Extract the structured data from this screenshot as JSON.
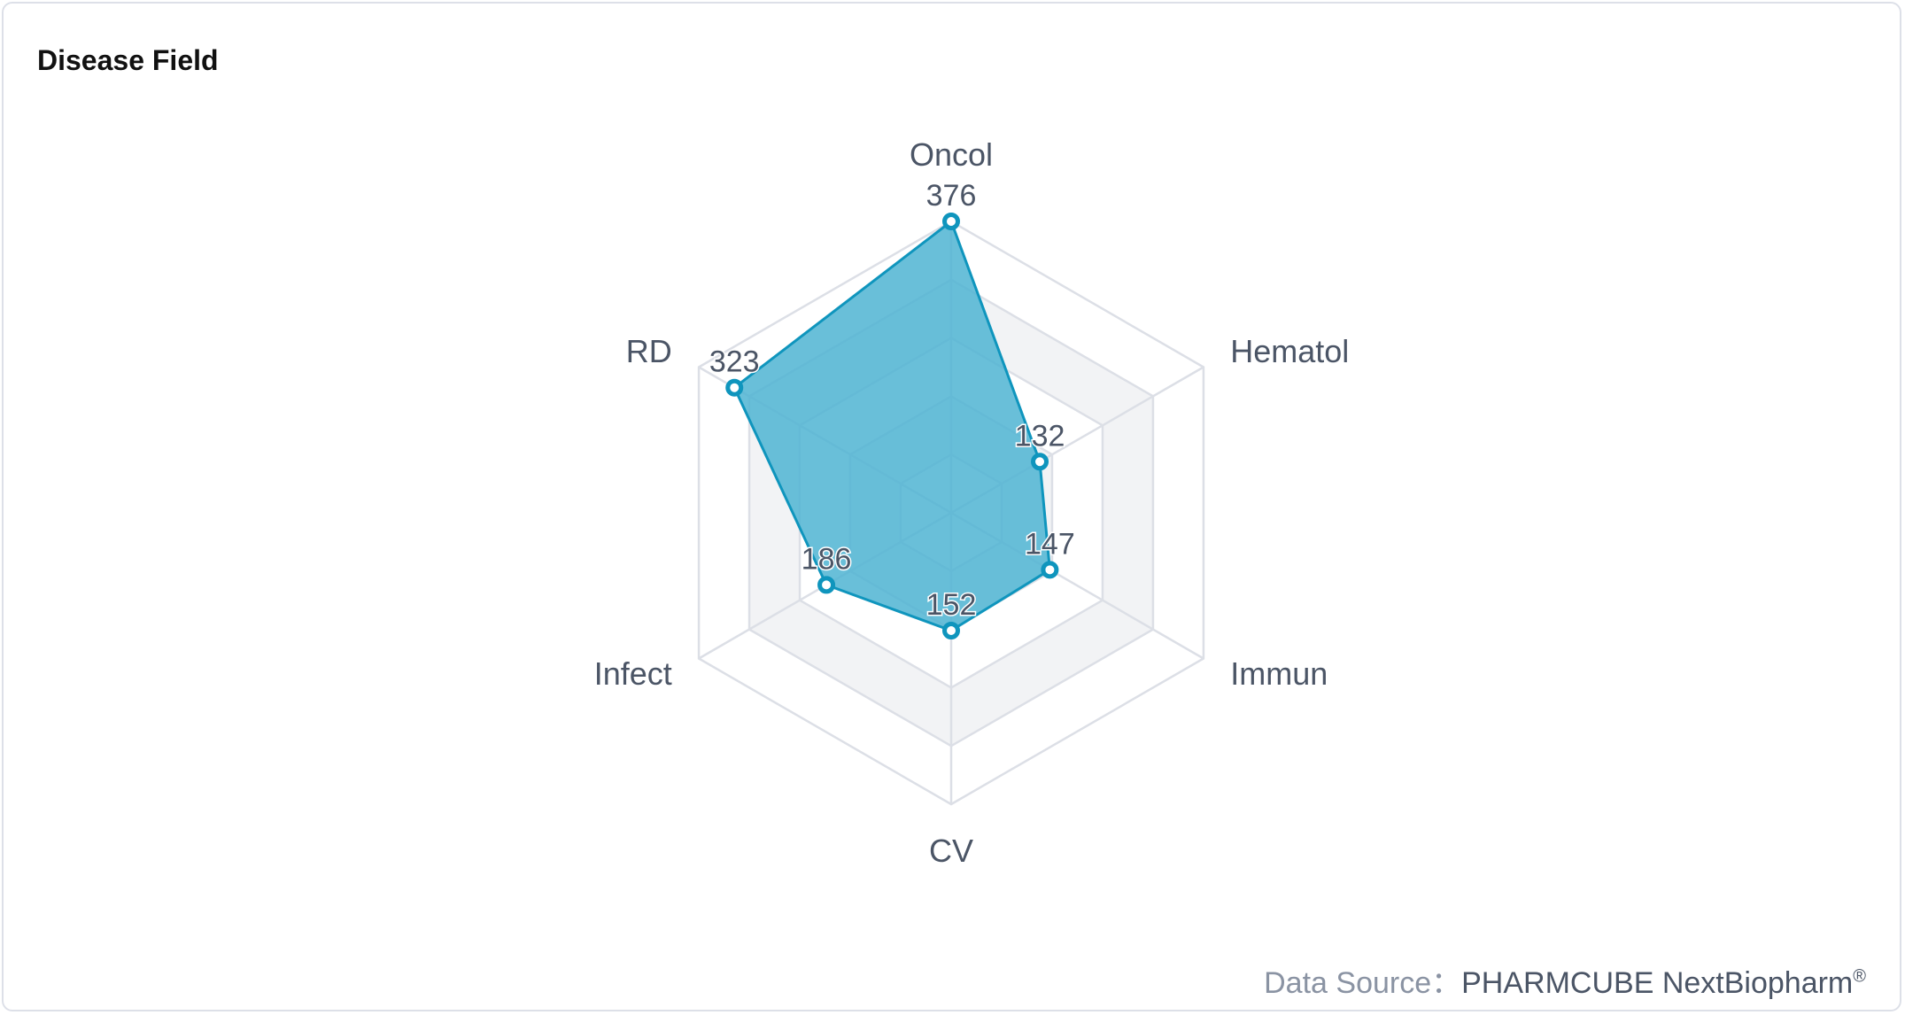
{
  "title": "Disease Field",
  "source": {
    "label": "Data Source：",
    "name": "PHARMCUBE NextBiopharm",
    "mark": "®"
  },
  "chart_data": {
    "type": "radar",
    "title": "Disease Field",
    "indicators": [
      "Oncol",
      "Hematol",
      "Immun",
      "CV",
      "Infect",
      "RD"
    ],
    "values": [
      376,
      132,
      147,
      152,
      186,
      323
    ],
    "max": 376,
    "split_number": 5,
    "colors": {
      "fill": "#4fb4d2",
      "line": "#0f95bd",
      "grid": "#dcdfe6",
      "band": "#f2f3f5",
      "label": "#4b5566"
    }
  }
}
